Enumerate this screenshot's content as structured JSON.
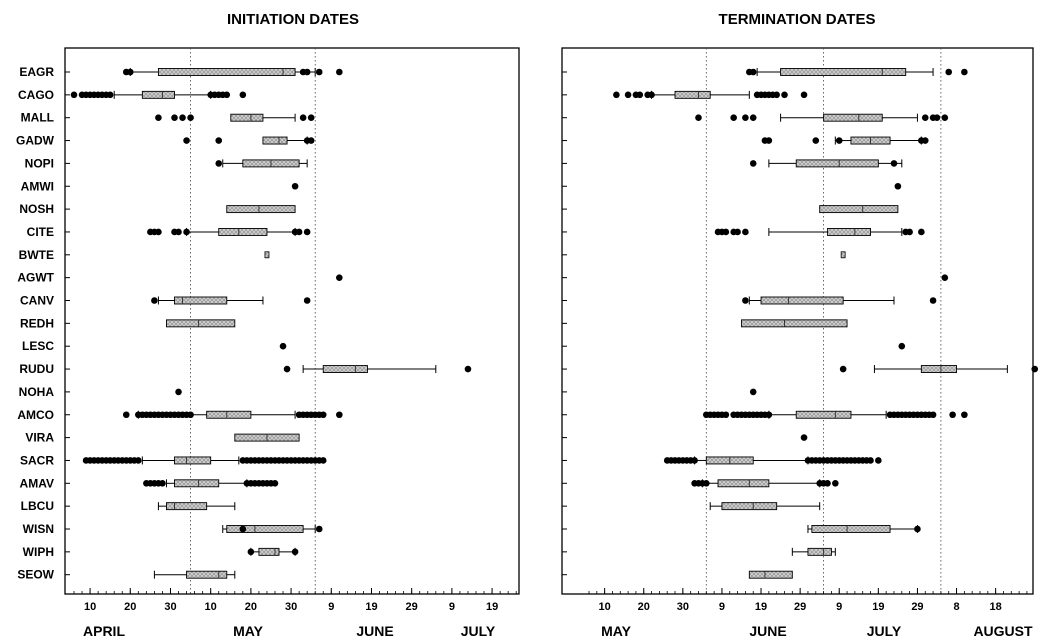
{
  "chart_data": [
    {
      "type": "box",
      "title": "INITIATION DATES",
      "x_ticks": [
        "10",
        "20",
        "30",
        "10",
        "20",
        "30",
        "9",
        "19",
        "29",
        "9",
        "19"
      ],
      "x_months": [
        "APRIL",
        "MAY",
        "JUNE",
        "JULY"
      ],
      "x_day_range": [
        0,
        114
      ],
      "reference_lines_day": [
        29,
        60
      ],
      "grid": false,
      "species": [
        "EAGR",
        "CAGO",
        "MALL",
        "GADW",
        "NOPI",
        "AMWI",
        "NOSH",
        "CITE",
        "BWTE",
        "AGWT",
        "CANV",
        "REDH",
        "LESC",
        "RUDU",
        "NOHA",
        "AMCO",
        "VIRA",
        "SACR",
        "AMAV",
        "LBCU",
        "WISN",
        "WIPH",
        "SEOW"
      ],
      "rows": [
        {
          "wl": 14,
          "q1": 21,
          "med": 52,
          "q3": 55,
          "wh": 60,
          "out": [
            13,
            14,
            57,
            58,
            61,
            66
          ]
        },
        {
          "wl": 10,
          "q1": 17,
          "med": 22,
          "q3": 25,
          "wh": 34,
          "out": [
            0,
            2,
            3,
            4,
            5,
            6,
            7,
            8,
            9,
            34,
            35,
            36,
            37,
            38,
            42
          ]
        },
        {
          "wl": null,
          "q1": 39,
          "med": 44,
          "q3": 47,
          "wh": 55,
          "out": [
            21,
            25,
            27,
            29,
            57,
            59
          ]
        },
        {
          "wl": null,
          "q1": 47,
          "med": 51,
          "q3": 53,
          "wh": 58,
          "out": [
            28,
            36,
            58,
            59
          ]
        },
        {
          "wl": 37,
          "q1": 42,
          "med": 49,
          "q3": 56,
          "wh": 58,
          "out": [
            36
          ]
        },
        {
          "wl": null,
          "q1": null,
          "med": null,
          "q3": null,
          "wh": null,
          "out": [
            55
          ]
        },
        {
          "wl": null,
          "q1": 38,
          "med": 46,
          "q3": 55,
          "wh": null,
          "out": []
        },
        {
          "wl": 28,
          "q1": 36,
          "med": 41,
          "q3": 48,
          "wh": 55,
          "out": [
            19,
            20,
            21,
            25,
            26,
            28,
            55,
            56,
            58
          ]
        },
        {
          "wl": null,
          "q1": null,
          "med": 48,
          "q3": null,
          "wh": null,
          "out": []
        },
        {
          "wl": null,
          "q1": null,
          "med": null,
          "q3": null,
          "wh": null,
          "out": [
            66
          ]
        },
        {
          "wl": 21,
          "q1": 25,
          "med": 27,
          "q3": 38,
          "wh": 47,
          "out": [
            20,
            58
          ]
        },
        {
          "wl": null,
          "q1": 23,
          "med": 31,
          "q3": 40,
          "wh": null,
          "out": []
        },
        {
          "wl": null,
          "q1": null,
          "med": null,
          "q3": null,
          "wh": null,
          "out": [
            52
          ]
        },
        {
          "wl": 57,
          "q1": 62,
          "med": 70,
          "q3": 73,
          "wh": 90,
          "out": [
            53,
            98
          ]
        },
        {
          "wl": null,
          "q1": null,
          "med": null,
          "q3": null,
          "wh": null,
          "out": [
            26
          ]
        },
        {
          "wl": 16,
          "q1": 33,
          "med": 38,
          "q3": 44,
          "wh": 55,
          "out": [
            13,
            16,
            17,
            18,
            19,
            20,
            21,
            22,
            23,
            24,
            25,
            26,
            27,
            28,
            29,
            56,
            57,
            58,
            59,
            60,
            61,
            62,
            66
          ]
        },
        {
          "wl": null,
          "q1": 40,
          "med": 48,
          "q3": 56,
          "wh": null,
          "out": []
        },
        {
          "wl": 17,
          "q1": 25,
          "med": 28,
          "q3": 34,
          "wh": 41,
          "out": [
            3,
            4,
            5,
            6,
            7,
            8,
            9,
            10,
            11,
            12,
            13,
            14,
            15,
            16,
            42,
            43,
            44,
            45,
            46,
            47,
            48,
            49,
            50,
            51,
            52,
            53,
            54,
            55,
            56,
            57,
            58,
            59,
            60,
            61,
            62
          ]
        },
        {
          "wl": 23,
          "q1": 25,
          "med": 31,
          "q3": 36,
          "wh": 43,
          "out": [
            18,
            19,
            20,
            21,
            22,
            43,
            44,
            45,
            46,
            47,
            48,
            49,
            50
          ]
        },
        {
          "wl": 21,
          "q1": 23,
          "med": 25,
          "q3": 33,
          "wh": 40,
          "out": []
        },
        {
          "wl": 37,
          "q1": 38,
          "med": 45,
          "q3": 57,
          "wh": 60,
          "out": [
            42,
            61
          ]
        },
        {
          "wl": 44,
          "q1": 46,
          "med": 50,
          "q3": 51,
          "wh": 55,
          "out": [
            44,
            55
          ]
        },
        {
          "wl": 20,
          "q1": 28,
          "med": 36,
          "q3": 38,
          "wh": 40,
          "out": []
        }
      ]
    },
    {
      "type": "box",
      "title": "TERMINATION DATES",
      "x_ticks": [
        "10",
        "20",
        "30",
        "9",
        "19",
        "29",
        "9",
        "19",
        "29",
        "8",
        "18"
      ],
      "x_months": [
        "MAY",
        "JUNE",
        "JULY",
        "AUGUST"
      ],
      "x_day_range": [
        0,
        114
      ],
      "reference_lines_day": [
        30,
        60,
        90
      ],
      "grid": false,
      "species": [
        "EAGR",
        "CAGO",
        "MALL",
        "GADW",
        "NOPI",
        "AMWI",
        "NOSH",
        "CITE",
        "BWTE",
        "AGWT",
        "CANV",
        "REDH",
        "LESC",
        "RUDU",
        "NOHA",
        "AMCO",
        "VIRA",
        "SACR",
        "AMAV",
        "LBCU",
        "WISN",
        "WIPH",
        "SEOW"
      ],
      "rows": [
        {
          "wl": 43,
          "q1": 49,
          "med": 75,
          "q3": 81,
          "wh": 88,
          "out": [
            41,
            42,
            92,
            96
          ]
        },
        {
          "wl": 16,
          "q1": 22,
          "med": 28,
          "q3": 31,
          "wh": 41,
          "out": [
            7,
            10,
            12,
            13,
            15,
            16,
            43,
            44,
            45,
            46,
            47,
            48,
            50,
            55
          ]
        },
        {
          "wl": 49,
          "q1": 60,
          "med": 69,
          "q3": 75,
          "wh": 84,
          "out": [
            28,
            37,
            40,
            42,
            86,
            88,
            89,
            91
          ]
        },
        {
          "wl": 63,
          "q1": 67,
          "med": 72,
          "q3": 77,
          "wh": 85,
          "out": [
            45,
            46,
            58,
            64,
            85,
            86
          ]
        },
        {
          "wl": 46,
          "q1": 53,
          "med": 64,
          "q3": 74,
          "wh": 80,
          "out": [
            42,
            78
          ]
        },
        {
          "wl": null,
          "q1": null,
          "med": null,
          "q3": null,
          "wh": null,
          "out": [
            79
          ]
        },
        {
          "wl": null,
          "q1": 59,
          "med": 70,
          "q3": 79,
          "wh": null,
          "out": []
        },
        {
          "wl": 46,
          "q1": 61,
          "med": 68,
          "q3": 72,
          "wh": 80,
          "out": [
            33,
            34,
            35,
            37,
            38,
            40,
            81,
            82,
            85
          ]
        },
        {
          "wl": null,
          "q1": null,
          "med": 65,
          "q3": null,
          "wh": null,
          "out": []
        },
        {
          "wl": null,
          "q1": null,
          "med": null,
          "q3": null,
          "wh": null,
          "out": [
            91
          ]
        },
        {
          "wl": 41,
          "q1": 44,
          "med": 51,
          "q3": 65,
          "wh": 78,
          "out": [
            40,
            88
          ]
        },
        {
          "wl": null,
          "q1": 39,
          "med": 50,
          "q3": 66,
          "wh": null,
          "out": []
        },
        {
          "wl": null,
          "q1": null,
          "med": null,
          "q3": null,
          "wh": null,
          "out": [
            80
          ]
        },
        {
          "wl": 73,
          "q1": 85,
          "med": 90,
          "q3": 94,
          "wh": 107,
          "out": [
            65,
            114
          ]
        },
        {
          "wl": null,
          "q1": null,
          "med": null,
          "q3": null,
          "wh": null,
          "out": [
            42
          ]
        },
        {
          "wl": 46,
          "q1": 53,
          "med": 63,
          "q3": 67,
          "wh": 76,
          "out": [
            30,
            31,
            32,
            33,
            34,
            35,
            37,
            38,
            39,
            40,
            41,
            42,
            43,
            44,
            45,
            46,
            77,
            78,
            79,
            80,
            81,
            82,
            83,
            84,
            85,
            86,
            87,
            88,
            93,
            96
          ]
        },
        {
          "wl": null,
          "q1": null,
          "med": null,
          "q3": null,
          "wh": null,
          "out": [
            55
          ]
        },
        {
          "wl": 27,
          "q1": 30,
          "med": 36,
          "q3": 42,
          "wh": 56,
          "out": [
            20,
            21,
            22,
            23,
            24,
            25,
            26,
            27,
            56,
            57,
            58,
            59,
            60,
            61,
            62,
            63,
            64,
            65,
            66,
            67,
            68,
            69,
            70,
            71,
            72,
            74
          ]
        },
        {
          "wl": 29,
          "q1": 33,
          "med": 41,
          "q3": 46,
          "wh": 59,
          "out": [
            27,
            28,
            29,
            30,
            59,
            60,
            61,
            63
          ]
        },
        {
          "wl": 31,
          "q1": 34,
          "med": 42,
          "q3": 48,
          "wh": 59,
          "out": []
        },
        {
          "wl": 56,
          "q1": 57,
          "med": 66,
          "q3": 77,
          "wh": 84,
          "out": [
            84
          ]
        },
        {
          "wl": 52,
          "q1": 56,
          "med": 60,
          "q3": 62,
          "wh": 63,
          "out": []
        },
        {
          "wl": null,
          "q1": 41,
          "med": 45,
          "q3": 52,
          "wh": null,
          "out": []
        }
      ]
    }
  ]
}
